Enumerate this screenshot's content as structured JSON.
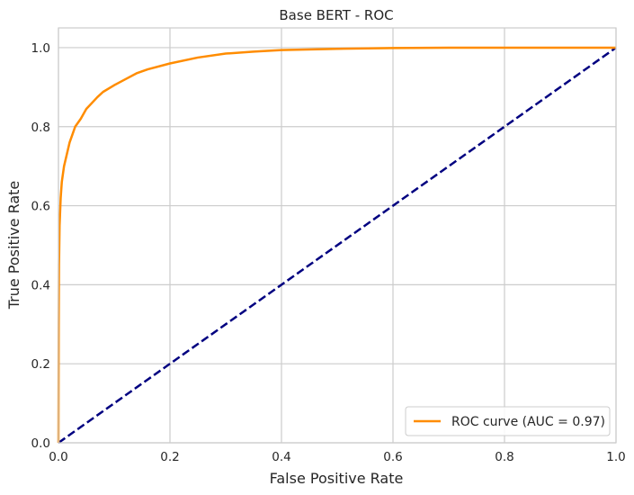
{
  "chart_data": {
    "type": "line",
    "title": "Base BERT - ROC",
    "xlabel": "False Positive Rate",
    "ylabel": "True Positive Rate",
    "xlim": [
      0.0,
      1.0
    ],
    "ylim": [
      0.0,
      1.05
    ],
    "xticks": [
      "0.0",
      "0.2",
      "0.4",
      "0.6",
      "0.8",
      "1.0"
    ],
    "yticks": [
      "0.0",
      "0.2",
      "0.4",
      "0.6",
      "0.8",
      "1.0"
    ],
    "grid": true,
    "legend_position": "lower-right",
    "series": [
      {
        "name": "ROC curve (AUC = 0.97)",
        "color": "#ff8c00",
        "style": "solid",
        "x": [
          0,
          0.0005,
          0.001,
          0.002,
          0.004,
          0.006,
          0.008,
          0.01,
          0.015,
          0.02,
          0.025,
          0.03,
          0.04,
          0.05,
          0.06,
          0.07,
          0.08,
          0.1,
          0.12,
          0.14,
          0.16,
          0.2,
          0.25,
          0.3,
          0.35,
          0.4,
          0.5,
          0.6,
          0.7,
          0.8,
          0.9,
          1.0
        ],
        "y": [
          0,
          0.3,
          0.45,
          0.55,
          0.62,
          0.66,
          0.68,
          0.7,
          0.73,
          0.76,
          0.78,
          0.8,
          0.82,
          0.845,
          0.86,
          0.875,
          0.888,
          0.905,
          0.92,
          0.935,
          0.945,
          0.96,
          0.975,
          0.985,
          0.99,
          0.994,
          0.997,
          0.999,
          1.0,
          1.0,
          1.0,
          1.0
        ]
      },
      {
        "name": "",
        "color": "#000080",
        "style": "dashed",
        "x": [
          0,
          1
        ],
        "y": [
          0,
          1
        ]
      }
    ]
  }
}
